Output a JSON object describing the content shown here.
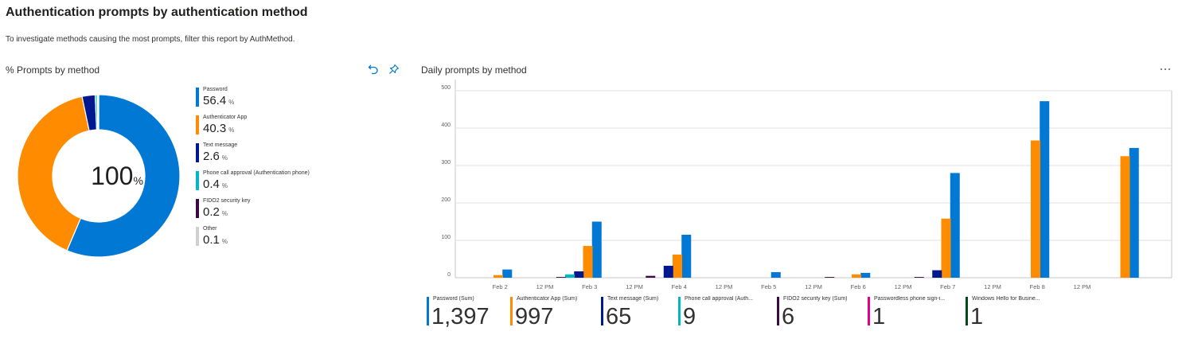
{
  "header": {
    "title": "Authentication prompts by authentication method",
    "description": "To investigate methods causing the most prompts, filter this report by AuthMethod."
  },
  "donut_card": {
    "title": "% Prompts by method",
    "center_value": "100",
    "center_unit": "%",
    "icons": {
      "undo": "undo-icon",
      "pin": "pin-icon"
    },
    "legend": [
      {
        "name": "Password",
        "value": "56.4",
        "unit": "%",
        "color": "#0078d4"
      },
      {
        "name": "Authenticator App",
        "value": "40.3",
        "unit": "%",
        "color": "#ff8c00"
      },
      {
        "name": "Text message",
        "value": "2.6",
        "unit": "%",
        "color": "#00188f"
      },
      {
        "name": "Phone call approval (Authentication phone)",
        "value": "0.4",
        "unit": "%",
        "color": "#00b7c3"
      },
      {
        "name": "FIDO2 security key",
        "value": "0.2",
        "unit": "%",
        "color": "#3b0a45"
      },
      {
        "name": "Other",
        "value": "0.1",
        "unit": "%",
        "color": "#d2d0ce"
      }
    ]
  },
  "bar_card": {
    "title": "Daily prompts by method",
    "more_icon": "more-icon",
    "tiles": [
      {
        "label": "Password (Sum)",
        "value": "1,397",
        "color": "#0078d4"
      },
      {
        "label": "Authenticator App (Sum)",
        "value": "997",
        "color": "#ff8c00"
      },
      {
        "label": "Text message (Sum)",
        "value": "65",
        "color": "#00188f"
      },
      {
        "label": "Phone call approval (Auth...",
        "value": "9",
        "color": "#00b7c3"
      },
      {
        "label": "FIDO2 security key (Sum)",
        "value": "6",
        "color": "#3b0a45"
      },
      {
        "label": "Passwordless phone sign-i...",
        "value": "1",
        "color": "#e3008c"
      },
      {
        "label": "Windows Hello for Busine...",
        "value": "1",
        "color": "#004b1c"
      }
    ]
  },
  "chart_data": [
    {
      "type": "pie",
      "title": "% Prompts by method",
      "categories": [
        "Password",
        "Authenticator App",
        "Text message",
        "Phone call approval (Authentication phone)",
        "FIDO2 security key",
        "Other"
      ],
      "values": [
        56.4,
        40.3,
        2.6,
        0.4,
        0.2,
        0.1
      ],
      "colors": [
        "#0078d4",
        "#ff8c00",
        "#00188f",
        "#00b7c3",
        "#3b0a45",
        "#d2d0ce"
      ],
      "center_label": "100%"
    },
    {
      "type": "bar",
      "title": "Daily prompts by method",
      "ylim": [
        0,
        500
      ],
      "yticks": [
        0,
        100,
        200,
        300,
        400,
        500
      ],
      "x_tick_labels": [
        "Feb 2",
        "12 PM",
        "Feb 3",
        "12 PM",
        "Feb 4",
        "12 PM",
        "Feb 5",
        "12 PM",
        "Feb 6",
        "12 PM",
        "Feb 7",
        "12 PM",
        "Feb 8",
        "12 PM"
      ],
      "x_tick_positions": [
        0.5,
        1,
        1.5,
        2,
        2.5,
        3,
        3.5,
        4,
        4.5,
        5,
        5.5,
        6,
        6.5,
        7
      ],
      "grid": true,
      "series": [
        {
          "name": "Password",
          "color": "#0078d4",
          "points": [
            [
              0.58,
              22
            ],
            [
              1.58,
              150
            ],
            [
              2.58,
              115
            ],
            [
              3.58,
              15
            ],
            [
              4.58,
              13
            ],
            [
              5.58,
              280
            ],
            [
              6.58,
              472
            ],
            [
              7.58,
              347
            ]
          ]
        },
        {
          "name": "Authenticator App",
          "color": "#ff8c00",
          "points": [
            [
              0.48,
              7
            ],
            [
              1.48,
              85
            ],
            [
              2.48,
              62
            ],
            [
              4.48,
              9
            ],
            [
              5.48,
              158
            ],
            [
              6.48,
              367
            ],
            [
              7.48,
              325
            ]
          ]
        },
        {
          "name": "Text message",
          "color": "#00188f",
          "points": [
            [
              1.38,
              17
            ],
            [
              2.38,
              32
            ],
            [
              5.38,
              20
            ]
          ]
        },
        {
          "name": "Phone call approval (Authentication phone)",
          "color": "#00b7c3",
          "points": [
            [
              1.28,
              9
            ]
          ]
        },
        {
          "name": "FIDO2 security key",
          "color": "#3b0a45",
          "points": [
            [
              1.18,
              2
            ],
            [
              2.18,
              5
            ],
            [
              4.18,
              2
            ],
            [
              5.18,
              2
            ]
          ]
        }
      ]
    }
  ]
}
